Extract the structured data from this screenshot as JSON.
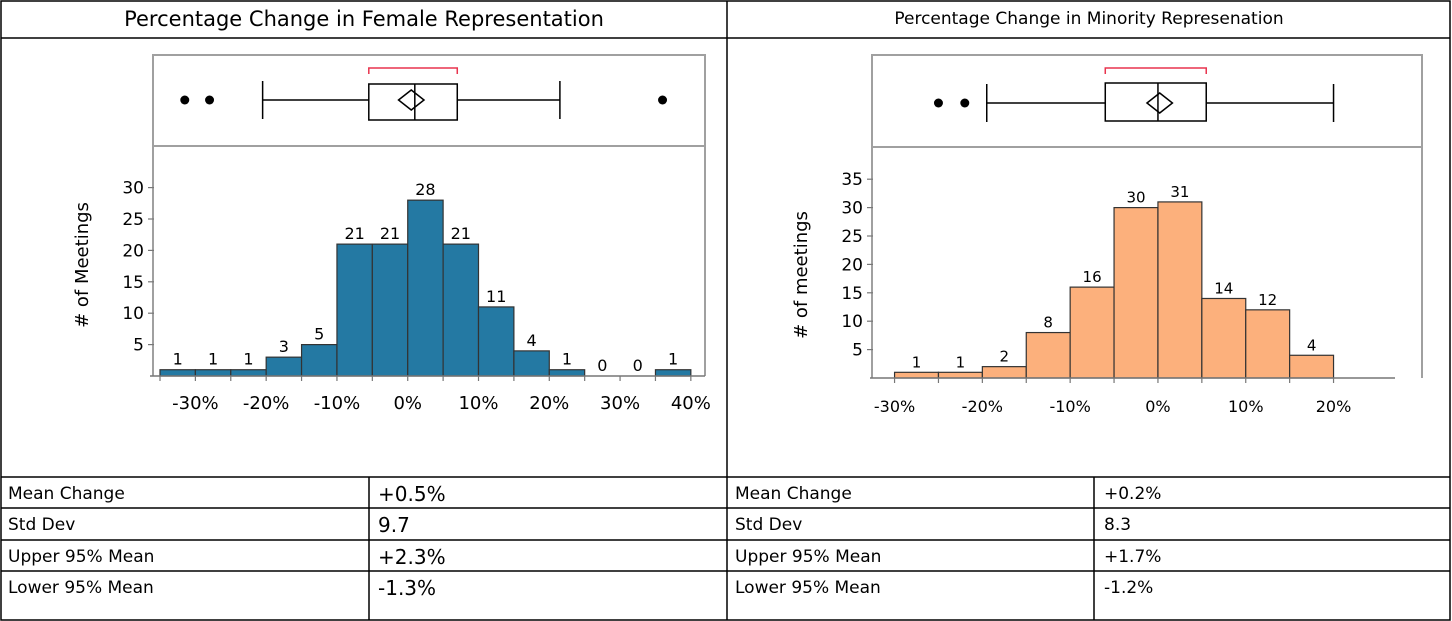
{
  "panels": [
    {
      "title": "Percentage Change in Female Representation",
      "stats": [
        {
          "label": "Mean Change",
          "value": "+0.5%"
        },
        {
          "label": "Std Dev",
          "value": "9.7"
        },
        {
          "label": "Upper 95% Mean",
          "value": "+2.3%"
        },
        {
          "label": "Lower 95% Mean",
          "value": "-1.3%"
        }
      ]
    },
    {
      "title": "Percentage Change in Minority Represenation",
      "stats": [
        {
          "label": "Mean Change",
          "value": "+0.2%"
        },
        {
          "label": "Std Dev",
          "value": "8.3"
        },
        {
          "label": "Upper 95% Mean",
          "value": "+1.7%"
        },
        {
          "label": "Lower 95% Mean",
          "value": "-1.2%"
        }
      ]
    }
  ],
  "chart_data": [
    {
      "type": "bar",
      "title": "Percentage Change in Female Representation",
      "ylabel": "# of Meetings",
      "xlabel": "",
      "bin_edges": [
        -35,
        -30,
        -25,
        -20,
        -15,
        -10,
        -5,
        0,
        5,
        10,
        15,
        20,
        25,
        30,
        35,
        40
      ],
      "values": [
        1,
        1,
        1,
        3,
        5,
        21,
        21,
        28,
        21,
        11,
        4,
        1,
        0,
        0,
        1
      ],
      "xlim": [
        -35,
        42
      ],
      "ylim": [
        0,
        33
      ],
      "x_ticks": [
        -30,
        -20,
        -10,
        0,
        10,
        20,
        30,
        40
      ],
      "x_tick_labels": [
        "-30%",
        "-20%",
        "-10%",
        "0%",
        "10%",
        "20%",
        "30%",
        "40%"
      ],
      "y_ticks": [
        5,
        10,
        15,
        20,
        25,
        30
      ],
      "y_tick_labels": [
        "5",
        "10",
        "15",
        "20",
        "25",
        "30"
      ],
      "bar_color": "#2479a3",
      "boxplot": {
        "whisker_low": -20.5,
        "q1": -5.5,
        "median": 1.0,
        "q3": 7.0,
        "whisker_high": 21.5,
        "mean": 0.5,
        "ci_low": -1.3,
        "ci_high": 2.3,
        "shortest_half": [
          -5.5,
          7.0
        ],
        "outliers": [
          -31.5,
          -28.0,
          36.0
        ]
      }
    },
    {
      "type": "bar",
      "title": "Percentage Change in Minority Represenation",
      "ylabel": "# of meetings",
      "xlabel": "",
      "bin_edges": [
        -30,
        -25,
        -20,
        -15,
        -10,
        -5,
        0,
        5,
        10,
        15,
        20
      ],
      "values": [
        1,
        1,
        2,
        8,
        16,
        30,
        31,
        14,
        12,
        4
      ],
      "xlim": [
        -32,
        27
      ],
      "ylim": [
        0,
        38
      ],
      "x_ticks": [
        -30,
        -20,
        -10,
        0,
        10,
        20
      ],
      "x_tick_labels": [
        "-30%",
        "-20%",
        "-10%",
        "0%",
        "10%",
        "20%"
      ],
      "y_ticks": [
        5,
        10,
        15,
        20,
        25,
        30,
        35
      ],
      "y_tick_labels": [
        "5",
        "10",
        "15",
        "20",
        "25",
        "30",
        "35"
      ],
      "bar_color": "#fcb07c",
      "boxplot": {
        "whisker_low": -19.5,
        "q1": -6.0,
        "median": 0.0,
        "q3": 5.5,
        "whisker_high": 20.0,
        "mean": 0.2,
        "ci_low": -1.2,
        "ci_high": 1.7,
        "shortest_half": [
          -6.0,
          5.5
        ],
        "outliers": [
          -25.0,
          -22.0
        ]
      }
    }
  ]
}
